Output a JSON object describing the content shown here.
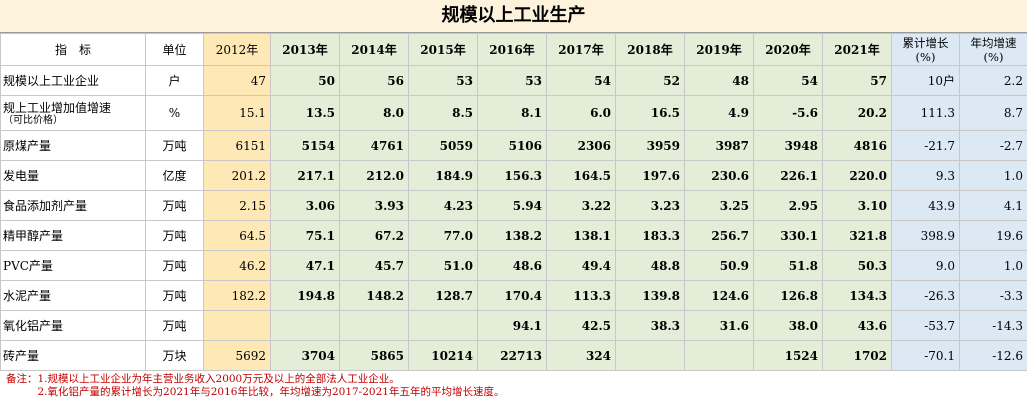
{
  "title": "规模以上工业生产",
  "headers": {
    "indicator": "指　标",
    "unit": "单位",
    "y2012": "2012年",
    "years": [
      "2013年",
      "2014年",
      "2015年",
      "2016年",
      "2017年",
      "2018年",
      "2019年",
      "2020年",
      "2021年"
    ],
    "cumulative_line1": "累计增长",
    "cumulative_line2": "(%)",
    "annual_line1": "年均增速",
    "annual_line2": "(%)"
  },
  "rows": [
    {
      "name": "规模以上工业企业",
      "sub": "",
      "unit": "户",
      "v2012": "47",
      "values": [
        "50",
        "56",
        "53",
        "53",
        "54",
        "52",
        "48",
        "54",
        "57"
      ],
      "cum": "10户",
      "avg": "2.2"
    },
    {
      "name": "规上工业增加值增速",
      "sub": "（可比价格）",
      "unit": "%",
      "v2012": "15.1",
      "values": [
        "13.5",
        "8.0",
        "8.5",
        "8.1",
        "6.0",
        "16.5",
        "4.9",
        "-5.6",
        "20.2"
      ],
      "cum": "111.3",
      "avg": "8.7"
    },
    {
      "name": "原煤产量",
      "sub": "",
      "unit": "万吨",
      "v2012": "6151",
      "values": [
        "5154",
        "4761",
        "5059",
        "5106",
        "2306",
        "3959",
        "3987",
        "3948",
        "4816"
      ],
      "cum": "-21.7",
      "avg": "-2.7"
    },
    {
      "name": "发电量",
      "sub": "",
      "unit": "亿度",
      "v2012": "201.2",
      "values": [
        "217.1",
        "212.0",
        "184.9",
        "156.3",
        "164.5",
        "197.6",
        "230.6",
        "226.1",
        "220.0"
      ],
      "cum": "9.3",
      "avg": "1.0"
    },
    {
      "name": "食品添加剂产量",
      "sub": "",
      "unit": "万吨",
      "v2012": "2.15",
      "values": [
        "3.06",
        "3.93",
        "4.23",
        "5.94",
        "3.22",
        "3.23",
        "3.25",
        "2.95",
        "3.10"
      ],
      "cum": "43.9",
      "avg": "4.1"
    },
    {
      "name": "精甲醇产量",
      "sub": "",
      "unit": "万吨",
      "v2012": "64.5",
      "values": [
        "75.1",
        "67.2",
        "77.0",
        "138.2",
        "138.1",
        "183.3",
        "256.7",
        "330.1",
        "321.8"
      ],
      "cum": "398.9",
      "avg": "19.6"
    },
    {
      "name": "PVC产量",
      "sub": "",
      "unit": "万吨",
      "v2012": "46.2",
      "values": [
        "47.1",
        "45.7",
        "51.0",
        "48.6",
        "49.4",
        "48.8",
        "50.9",
        "51.8",
        "50.3"
      ],
      "cum": "9.0",
      "avg": "1.0"
    },
    {
      "name": "水泥产量",
      "sub": "",
      "unit": "万吨",
      "v2012": "182.2",
      "values": [
        "194.8",
        "148.2",
        "128.7",
        "170.4",
        "113.3",
        "139.8",
        "124.6",
        "126.8",
        "134.3"
      ],
      "cum": "-26.3",
      "avg": "-3.3"
    },
    {
      "name": "氧化铝产量",
      "sub": "",
      "unit": "万吨",
      "v2012": "",
      "values": [
        "",
        "",
        "",
        "94.1",
        "42.5",
        "38.3",
        "31.6",
        "38.0",
        "43.6"
      ],
      "cum": "-53.7",
      "avg": "-14.3"
    },
    {
      "name": "砖产量",
      "sub": "",
      "unit": "万块",
      "v2012": "5692",
      "values": [
        "3704",
        "5865",
        "10214",
        "22713",
        "324",
        "",
        "",
        "1524",
        "1702"
      ],
      "cum": "-70.1",
      "avg": "-12.6"
    }
  ],
  "notes": [
    "备注：1.规模以上工业企业为年主营业务收入2000万元及以上的全部法人工业企业。",
    "　　　2.氧化铝产量的累计增长为2021年与2016年比较，年均增速为2017-2021年五年的平均增长速度。"
  ]
}
